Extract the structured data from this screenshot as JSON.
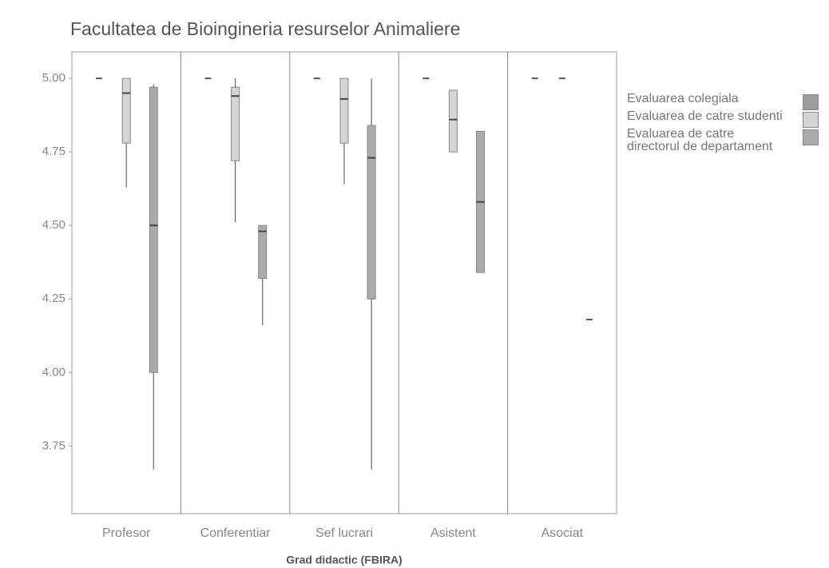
{
  "chart_data": {
    "type": "boxplot",
    "title": "Facultatea de Bioingineria resurselor Animaliere",
    "x_label": "Grad didactic (FBIRA)",
    "categories": [
      "Profesor",
      "Conferentiar",
      "Sef lucrari",
      "Asistent",
      "Asociat"
    ],
    "ylim": [
      3.52,
      5.09
    ],
    "yticks": [
      {
        "value": 3.75,
        "label": "3.75"
      },
      {
        "value": 4,
        "label": "4.00"
      },
      {
        "value": 4.25,
        "label": "4.25"
      },
      {
        "value": 4.5,
        "label": "4.50"
      },
      {
        "value": 4.75,
        "label": "4.75"
      },
      {
        "value": 5,
        "label": "5.00"
      }
    ],
    "legend": "right",
    "series": [
      {
        "name": "Evaluarea colegiala",
        "color": "#9c9c9c",
        "values": [
          {
            "min": 5,
            "q1": 5,
            "median": 5,
            "q3": 5,
            "max": 5
          },
          {
            "min": 5,
            "q1": 5,
            "median": 5,
            "q3": 5,
            "max": 5
          },
          {
            "min": 5,
            "q1": 5,
            "median": 5,
            "q3": 5,
            "max": 5
          },
          {
            "min": 5,
            "q1": 5,
            "median": 5,
            "q3": 5,
            "max": 5
          },
          {
            "min": 5,
            "q1": 5,
            "median": 5,
            "q3": 5,
            "max": 5
          }
        ]
      },
      {
        "name": "Evaluarea de catre studenti",
        "color": "#d4d4d4",
        "values": [
          {
            "min": 4.63,
            "q1": 4.78,
            "median": 4.95,
            "q3": 5,
            "max": 5
          },
          {
            "min": 4.51,
            "q1": 4.72,
            "median": 4.94,
            "q3": 4.97,
            "max": 5
          },
          {
            "min": 4.64,
            "q1": 4.78,
            "median": 4.93,
            "q3": 5,
            "max": 5
          },
          {
            "min": 4.75,
            "q1": 4.75,
            "median": 4.86,
            "q3": 4.96,
            "max": 4.96
          },
          {
            "min": 5,
            "q1": 5,
            "median": 5,
            "q3": 5,
            "max": 5
          }
        ]
      },
      {
        "name": "Evaluarea de catre directorul de departament",
        "color": "#ababab",
        "values": [
          {
            "min": 3.67,
            "q1": 4,
            "median": 4.5,
            "q3": 4.97,
            "max": 4.98
          },
          {
            "min": 4.16,
            "q1": 4.32,
            "median": 4.48,
            "q3": 4.5,
            "max": 4.5
          },
          {
            "min": 3.67,
            "q1": 4.25,
            "median": 4.73,
            "q3": 4.84,
            "max": 5
          },
          {
            "min": 4.34,
            "q1": 4.34,
            "median": 4.58,
            "q3": 4.82,
            "max": 4.82
          },
          {
            "min": 4.18,
            "q1": 4.18,
            "median": 4.18,
            "q3": 4.18,
            "max": 4.18
          }
        ]
      }
    ]
  }
}
